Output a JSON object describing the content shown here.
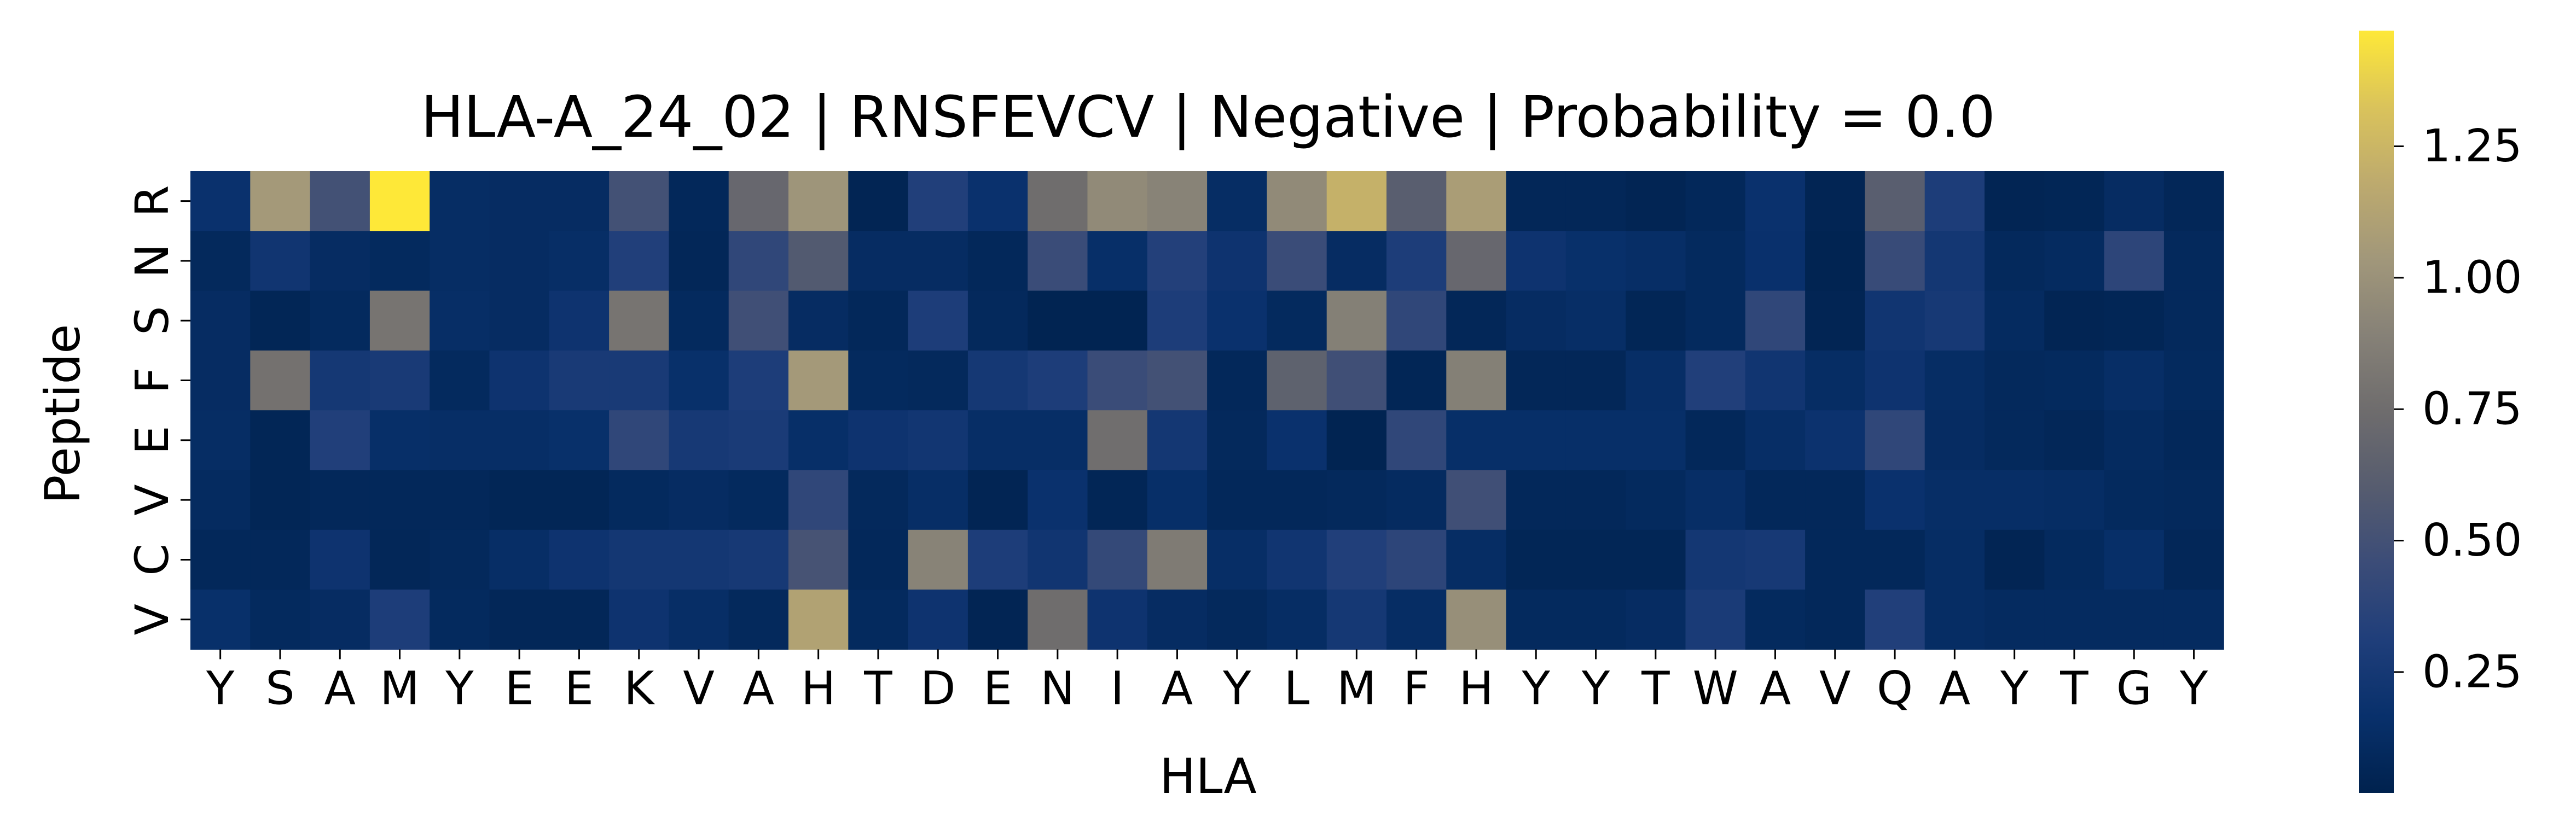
{
  "chart_data": {
    "type": "heatmap",
    "title": "HLA-A_24_02 | RNSFEVCV | Negative | Probability = 0.0",
    "xlabel": "HLA",
    "ylabel": "Peptide",
    "x_tick_labels": [
      "Y",
      "S",
      "A",
      "M",
      "Y",
      "E",
      "E",
      "K",
      "V",
      "A",
      "H",
      "T",
      "D",
      "E",
      "N",
      "I",
      "A",
      "Y",
      "L",
      "M",
      "F",
      "H",
      "Y",
      "Y",
      "T",
      "W",
      "A",
      "V",
      "Q",
      "A",
      "Y",
      "T",
      "G",
      "Y"
    ],
    "y_tick_labels": [
      "R",
      "N",
      "S",
      "F",
      "E",
      "V",
      "C",
      "V"
    ],
    "colormap": "cividis",
    "colorbar": {
      "vmin": 0.02,
      "vmax": 1.47,
      "ticks": [
        0.25,
        0.5,
        0.75,
        1.0,
        1.25
      ],
      "tick_labels": [
        "0.25",
        "0.50",
        "0.75",
        "1.00",
        "1.25"
      ]
    },
    "values": [
      [
        0.18,
        1.05,
        0.5,
        1.47,
        0.13,
        0.12,
        0.12,
        0.5,
        0.08,
        0.7,
        1.02,
        0.05,
        0.32,
        0.18,
        0.75,
        0.95,
        0.9,
        0.13,
        0.95,
        1.22,
        0.62,
        1.08,
        0.07,
        0.07,
        0.05,
        0.08,
        0.18,
        0.05,
        0.62,
        0.3,
        0.05,
        0.06,
        0.12,
        0.07
      ],
      [
        0.09,
        0.22,
        0.12,
        0.1,
        0.13,
        0.12,
        0.14,
        0.32,
        0.07,
        0.4,
        0.58,
        0.12,
        0.12,
        0.08,
        0.45,
        0.15,
        0.33,
        0.2,
        0.45,
        0.12,
        0.3,
        0.7,
        0.2,
        0.16,
        0.14,
        0.1,
        0.17,
        0.04,
        0.44,
        0.24,
        0.09,
        0.11,
        0.38,
        0.09
      ],
      [
        0.12,
        0.06,
        0.1,
        0.8,
        0.14,
        0.12,
        0.2,
        0.8,
        0.1,
        0.48,
        0.12,
        0.08,
        0.3,
        0.09,
        0.04,
        0.04,
        0.3,
        0.18,
        0.1,
        0.88,
        0.4,
        0.07,
        0.12,
        0.14,
        0.06,
        0.1,
        0.4,
        0.05,
        0.22,
        0.26,
        0.11,
        0.05,
        0.06,
        0.09
      ],
      [
        0.12,
        0.78,
        0.25,
        0.27,
        0.1,
        0.2,
        0.27,
        0.27,
        0.16,
        0.3,
        1.05,
        0.1,
        0.09,
        0.25,
        0.3,
        0.45,
        0.5,
        0.08,
        0.65,
        0.48,
        0.06,
        0.88,
        0.07,
        0.07,
        0.14,
        0.32,
        0.22,
        0.13,
        0.2,
        0.13,
        0.09,
        0.1,
        0.14,
        0.1
      ],
      [
        0.13,
        0.06,
        0.32,
        0.15,
        0.14,
        0.14,
        0.16,
        0.4,
        0.26,
        0.28,
        0.15,
        0.2,
        0.23,
        0.14,
        0.14,
        0.76,
        0.24,
        0.09,
        0.18,
        0.04,
        0.4,
        0.15,
        0.15,
        0.15,
        0.15,
        0.08,
        0.14,
        0.19,
        0.4,
        0.12,
        0.09,
        0.07,
        0.11,
        0.08
      ],
      [
        0.11,
        0.06,
        0.08,
        0.08,
        0.08,
        0.06,
        0.06,
        0.1,
        0.12,
        0.1,
        0.4,
        0.09,
        0.14,
        0.05,
        0.18,
        0.06,
        0.15,
        0.08,
        0.08,
        0.09,
        0.11,
        0.48,
        0.08,
        0.08,
        0.1,
        0.14,
        0.08,
        0.08,
        0.18,
        0.14,
        0.14,
        0.13,
        0.1,
        0.09
      ],
      [
        0.08,
        0.08,
        0.2,
        0.07,
        0.09,
        0.14,
        0.2,
        0.24,
        0.24,
        0.26,
        0.52,
        0.08,
        0.9,
        0.3,
        0.22,
        0.42,
        0.85,
        0.14,
        0.22,
        0.32,
        0.38,
        0.13,
        0.06,
        0.06,
        0.06,
        0.24,
        0.26,
        0.08,
        0.08,
        0.13,
        0.05,
        0.1,
        0.15,
        0.07
      ],
      [
        0.16,
        0.1,
        0.12,
        0.3,
        0.1,
        0.07,
        0.07,
        0.2,
        0.14,
        0.09,
        1.12,
        0.1,
        0.2,
        0.05,
        0.75,
        0.2,
        0.12,
        0.09,
        0.13,
        0.25,
        0.13,
        0.98,
        0.1,
        0.1,
        0.12,
        0.28,
        0.1,
        0.08,
        0.32,
        0.13,
        0.11,
        0.11,
        0.11,
        0.11
      ]
    ]
  }
}
